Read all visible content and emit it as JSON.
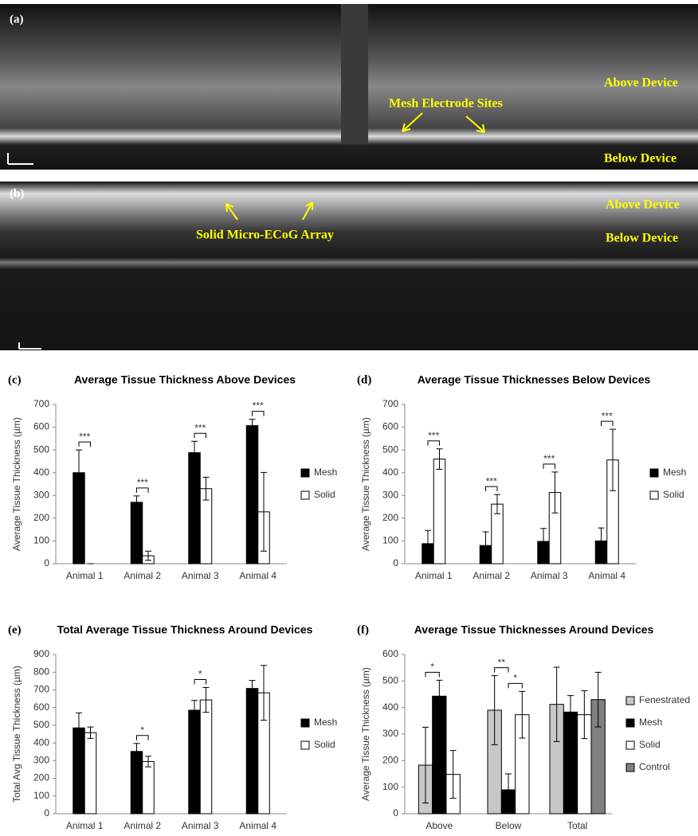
{
  "images": [
    {
      "label": "(a)",
      "annotations": [
        "Mesh Electrode Sites",
        "Above Device",
        "Below Device"
      ]
    },
    {
      "label": "(b)",
      "annotations": [
        "Solid Micro-ECoG Array",
        "Above Device",
        "Below Device"
      ]
    }
  ],
  "chart_data": [
    {
      "type": "bar",
      "label": "(c)",
      "title": "Average Tissue Thickness Above Devices",
      "y_label": "Average Tissue Thickness (µm)",
      "categories": [
        "Animal 1",
        "Animal 2",
        "Animal 3",
        "Animal 4"
      ],
      "series": [
        {
          "name": "Mesh",
          "color": "#000000",
          "values": [
            400,
            270,
            488,
            607
          ],
          "errors": [
            100,
            28,
            50,
            28
          ]
        },
        {
          "name": "Solid",
          "color": "#ffffff",
          "values": [
            0,
            35,
            330,
            228
          ],
          "errors": [
            0,
            20,
            50,
            173
          ]
        }
      ],
      "significance": [
        {
          "text": "***",
          "category": "Animal 1",
          "series": [
            "Mesh",
            "Solid"
          ]
        },
        {
          "text": "***",
          "category": "Animal 2",
          "series": [
            "Mesh",
            "Solid"
          ]
        },
        {
          "text": "***",
          "category": "Animal 3",
          "series": [
            "Mesh",
            "Solid"
          ]
        },
        {
          "text": "***",
          "category": "Animal 4",
          "series": [
            "Mesh",
            "Solid"
          ]
        }
      ],
      "ylim": [
        0,
        700
      ],
      "yticks": [
        0,
        100,
        200,
        300,
        400,
        500,
        600,
        700
      ],
      "legend": "right"
    },
    {
      "type": "bar",
      "label": "(d)",
      "title": "Average Tissue Thicknesses Below Devices",
      "y_label": "Average Tissue Thickness (µm)",
      "categories": [
        "Animal 1",
        "Animal 2",
        "Animal 3",
        "Animal 4"
      ],
      "series": [
        {
          "name": "Mesh",
          "color": "#000000",
          "values": [
            88,
            80,
            98,
            100
          ],
          "errors": [
            58,
            60,
            57,
            57
          ]
        },
        {
          "name": "Solid",
          "color": "#ffffff",
          "values": [
            460,
            262,
            313,
            456
          ],
          "errors": [
            45,
            42,
            90,
            135
          ]
        }
      ],
      "significance": [
        {
          "text": "***",
          "category": "Animal 1",
          "series": [
            "Mesh",
            "Solid"
          ]
        },
        {
          "text": "***",
          "category": "Animal 2",
          "series": [
            "Mesh",
            "Solid"
          ]
        },
        {
          "text": "***",
          "category": "Animal 3",
          "series": [
            "Mesh",
            "Solid"
          ]
        },
        {
          "text": "***",
          "category": "Animal 4",
          "series": [
            "Mesh",
            "Solid"
          ]
        }
      ],
      "ylim": [
        0,
        700
      ],
      "yticks": [
        0,
        100,
        200,
        300,
        400,
        500,
        600,
        700
      ],
      "legend": "right"
    },
    {
      "type": "bar",
      "label": "(e)",
      "title": "Total Average Tissue Thickness Around Devices",
      "y_label": "Total Avg Tissue Thickness (µm)",
      "categories": [
        "Animal 1",
        "Animal 2",
        "Animal 3",
        "Animal 4"
      ],
      "series": [
        {
          "name": "Mesh",
          "color": "#000000",
          "values": [
            485,
            352,
            585,
            708
          ],
          "errors": [
            85,
            45,
            55,
            45
          ]
        },
        {
          "name": "Solid",
          "color": "#ffffff",
          "values": [
            458,
            295,
            643,
            683
          ],
          "errors": [
            32,
            30,
            70,
            155
          ]
        }
      ],
      "significance": [
        {
          "text": "*",
          "category": "Animal 2",
          "series": [
            "Mesh",
            "Solid"
          ]
        },
        {
          "text": "*",
          "category": "Animal 3",
          "series": [
            "Mesh",
            "Solid"
          ]
        }
      ],
      "ylim": [
        0,
        900
      ],
      "yticks": [
        0,
        100,
        200,
        300,
        400,
        500,
        600,
        700,
        800,
        900
      ],
      "legend": "right"
    },
    {
      "type": "bar",
      "label": "(f)",
      "title": "Average Tissue Thicknesses Around Devices",
      "y_label": "Average Tissue Thickness (µm)",
      "categories": [
        "Above",
        "Below",
        "Total"
      ],
      "series": [
        {
          "name": "Fenestrated",
          "color": "#c8c8c8",
          "values": [
            183,
            390,
            412
          ],
          "errors": [
            143,
            130,
            140
          ]
        },
        {
          "name": "Mesh",
          "color": "#000000",
          "values": [
            443,
            90,
            383
          ],
          "errors": [
            60,
            60,
            62
          ]
        },
        {
          "name": "Solid",
          "color": "#ffffff",
          "values": [
            148,
            373,
            373
          ],
          "errors": [
            90,
            88,
            90
          ]
        },
        {
          "name": "Control",
          "color": "#808080",
          "values": [
            null,
            null,
            430
          ],
          "errors": [
            null,
            null,
            103
          ]
        }
      ],
      "significance": [
        {
          "text": "*",
          "category": "Above",
          "series": [
            "Fenestrated",
            "Mesh"
          ]
        },
        {
          "text": "**",
          "category": "Below",
          "series": [
            "Fenestrated",
            "Mesh"
          ]
        },
        {
          "text": "*",
          "category": "Below",
          "series": [
            "Mesh",
            "Solid"
          ]
        }
      ],
      "ylim": [
        0,
        600
      ],
      "yticks": [
        0,
        100,
        200,
        300,
        400,
        500,
        600
      ],
      "legend": "right"
    }
  ]
}
